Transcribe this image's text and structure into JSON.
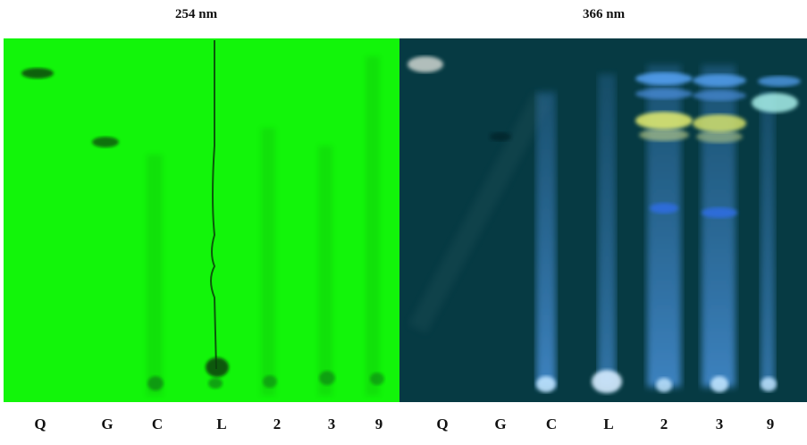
{
  "panels": [
    {
      "title": "254 nm",
      "lanes": [
        "Q",
        "G",
        "C",
        "L",
        "2",
        "3",
        "9"
      ]
    },
    {
      "title": "366 nm",
      "lanes": [
        "Q",
        "G",
        "C",
        "L",
        "2",
        "3",
        "9"
      ]
    }
  ],
  "colors": {
    "uv254_background": "#12f50a",
    "uv366_background": "#063a43",
    "spot_dark": "#0b3d0c",
    "fluorescence_blue": "#5aa8ff",
    "fluorescence_yellow": "#e8f070"
  }
}
